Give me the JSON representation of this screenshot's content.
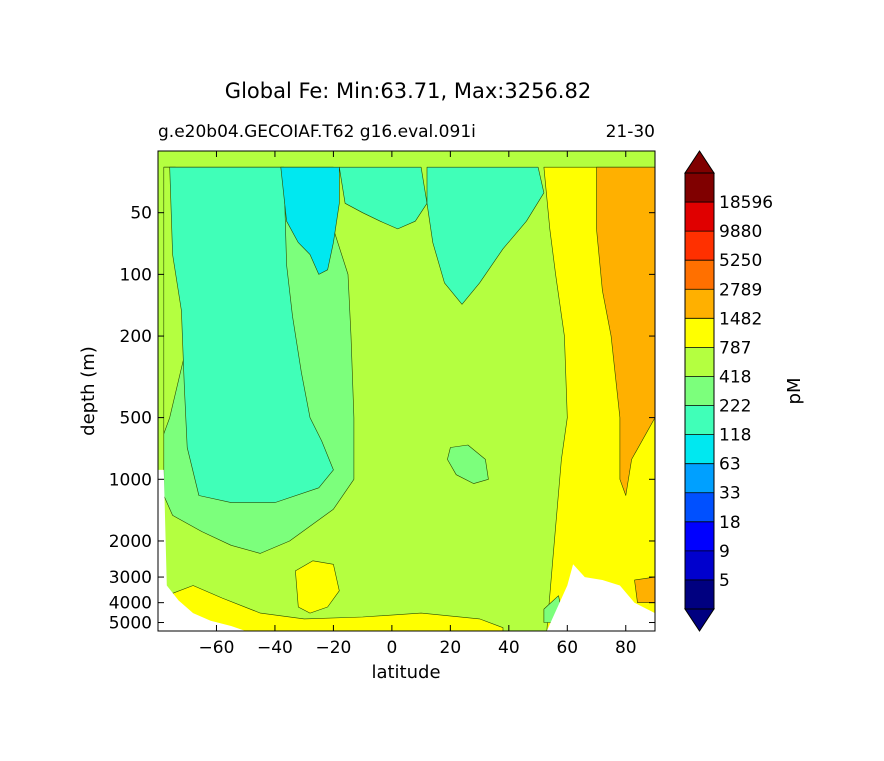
{
  "chart_data": {
    "type": "heatmap",
    "title": "Global Fe: Min:63.71, Max:3256.82",
    "subtitle_left": "g.e20b04.GECOIAF.T62 g16.eval.091i",
    "subtitle_right": "21-30",
    "xlabel": "latitude",
    "ylabel": "depth (m)",
    "colorbar_label": "pM",
    "xlim": [
      -80,
      90
    ],
    "x_ticks": [
      -60,
      -40,
      -20,
      0,
      20,
      40,
      60,
      80
    ],
    "x_tick_labels": [
      "−60",
      "−40",
      "−20",
      "0",
      "20",
      "40",
      "60",
      "80"
    ],
    "y_scale": "log",
    "ylim": [
      5500,
      25
    ],
    "y_ticks": [
      50,
      100,
      200,
      500,
      1000,
      2000,
      3000,
      4000,
      5000
    ],
    "y_tick_labels": [
      "50",
      "100",
      "200",
      "500",
      "1000",
      "2000",
      "3000",
      "4000",
      "5000"
    ],
    "colorbar_levels": [
      "5",
      "9",
      "18",
      "33",
      "63",
      "118",
      "222",
      "418",
      "787",
      "1482",
      "2789",
      "5250",
      "9880",
      "18596"
    ],
    "colorbar_colors": [
      "#000080",
      "#0000cd",
      "#0000ff",
      "#0050ff",
      "#00a0ff",
      "#00e8f0",
      "#40ffb8",
      "#7cff7c",
      "#b4ff40",
      "#ffff00",
      "#ffb000",
      "#ff7000",
      "#ff3000",
      "#e00000",
      "#800000"
    ],
    "colorbar_extend": "both",
    "regions": [
      {
        "fill": "#7cff7c",
        "desc": "southern intermediate/deep water",
        "poly": [
          [
            -78,
            30
          ],
          [
            -20,
            30
          ],
          [
            -20,
            60
          ],
          [
            -15,
            100
          ],
          [
            -14,
            200
          ],
          [
            -13,
            500
          ],
          [
            -13,
            1000
          ],
          [
            -20,
            1400
          ],
          [
            -35,
            2000
          ],
          [
            -45,
            2300
          ],
          [
            -55,
            2100
          ],
          [
            -65,
            1800
          ],
          [
            -75,
            1500
          ],
          [
            -78,
            1200
          ]
        ]
      },
      {
        "fill": "#b4ff40",
        "desc": "southern surface band",
        "poly": [
          [
            -78,
            30
          ],
          [
            -74,
            30
          ],
          [
            -73,
            60
          ],
          [
            -70,
            120
          ],
          [
            -71,
            250
          ],
          [
            -76,
            500
          ],
          [
            -78,
            600
          ]
        ]
      },
      {
        "fill": "#40ffb8",
        "desc": "southern mid-depth tongue",
        "poly": [
          [
            -76,
            30
          ],
          [
            -37,
            30
          ],
          [
            -36,
            90
          ],
          [
            -34,
            160
          ],
          [
            -31,
            300
          ],
          [
            -28,
            500
          ],
          [
            -24,
            650
          ],
          [
            -20,
            900
          ],
          [
            -25,
            1100
          ],
          [
            -40,
            1300
          ],
          [
            -55,
            1300
          ],
          [
            -66,
            1200
          ],
          [
            -70,
            700
          ],
          [
            -71,
            350
          ],
          [
            -72,
            150
          ],
          [
            -75,
            80
          ]
        ]
      },
      {
        "fill": "#00e8f0",
        "desc": "subtropical gyre low",
        "poly": [
          [
            -38,
            30
          ],
          [
            -18,
            30
          ],
          [
            -18,
            45
          ],
          [
            -20,
            70
          ],
          [
            -22,
            95
          ],
          [
            -25,
            100
          ],
          [
            -28,
            80
          ],
          [
            -32,
            70
          ],
          [
            -36,
            55
          ]
        ]
      },
      {
        "fill": "#40ffb8",
        "desc": "equatorial surface",
        "poly": [
          [
            -18,
            30
          ],
          [
            10,
            30
          ],
          [
            12,
            45
          ],
          [
            8,
            55
          ],
          [
            2,
            60
          ],
          [
            -4,
            55
          ],
          [
            -10,
            50
          ],
          [
            -16,
            45
          ]
        ]
      },
      {
        "fill": "#40ffb8",
        "desc": "tropical thermocline",
        "poly": [
          [
            12,
            30
          ],
          [
            50,
            30
          ],
          [
            52,
            40
          ],
          [
            46,
            55
          ],
          [
            38,
            75
          ],
          [
            30,
            110
          ],
          [
            24,
            140
          ],
          [
            18,
            110
          ],
          [
            14,
            70
          ],
          [
            12,
            45
          ]
        ]
      },
      {
        "fill": "#7cff7c",
        "desc": "northern intermediate patch",
        "poly": [
          [
            20,
            700
          ],
          [
            26,
            680
          ],
          [
            32,
            800
          ],
          [
            33,
            1000
          ],
          [
            28,
            1050
          ],
          [
            22,
            950
          ],
          [
            19,
            800
          ]
        ]
      },
      {
        "fill": "#ffff00",
        "desc": "deep abyssal south",
        "poly": [
          [
            -75,
            3600
          ],
          [
            -68,
            3300
          ],
          [
            -58,
            3800
          ],
          [
            -45,
            4500
          ],
          [
            -30,
            4800
          ],
          [
            -10,
            4700
          ],
          [
            10,
            4500
          ],
          [
            30,
            4800
          ],
          [
            38,
            5300
          ],
          [
            38,
            5500
          ],
          [
            -75,
            5500
          ]
        ]
      },
      {
        "fill": "#ffff00",
        "desc": "mid-ocean ridge high",
        "poly": [
          [
            -33,
            2800
          ],
          [
            -27,
            2500
          ],
          [
            -20,
            2600
          ],
          [
            -18,
            3500
          ],
          [
            -22,
            4200
          ],
          [
            -28,
            4500
          ],
          [
            -32,
            4200
          ]
        ]
      },
      {
        "fill": "#ffff00",
        "desc": "northern high",
        "poly": [
          [
            52,
            30
          ],
          [
            90,
            30
          ],
          [
            90,
            5500
          ],
          [
            53,
            5500
          ],
          [
            55,
            2500
          ],
          [
            58,
            800
          ],
          [
            60,
            500
          ],
          [
            59,
            200
          ],
          [
            56,
            100
          ],
          [
            54,
            60
          ]
        ]
      },
      {
        "fill": "#ffb000",
        "desc": "arctic maximum",
        "poly": [
          [
            70,
            30
          ],
          [
            90,
            30
          ],
          [
            90,
            500
          ],
          [
            82,
            800
          ],
          [
            80,
            1200
          ],
          [
            78,
            1000
          ],
          [
            78,
            500
          ],
          [
            75,
            200
          ],
          [
            72,
            120
          ],
          [
            70,
            60
          ]
        ]
      },
      {
        "fill": "#ffb000",
        "desc": "deep arctic patch",
        "poly": [
          [
            83,
            3100
          ],
          [
            90,
            3000
          ],
          [
            90,
            4000
          ],
          [
            84,
            4000
          ]
        ]
      },
      {
        "fill": "#7cff7c",
        "desc": "northern deep patch",
        "poly": [
          [
            52,
            4300
          ],
          [
            57,
            3700
          ],
          [
            58,
            4300
          ],
          [
            55,
            5000
          ],
          [
            52,
            5000
          ]
        ]
      }
    ],
    "land_mask": [
      {
        "desc": "antarctic seafloor",
        "poly": [
          [
            -80,
            900
          ],
          [
            -78,
            900
          ],
          [
            -77,
            3300
          ],
          [
            -73,
            3900
          ],
          [
            -68,
            4500
          ],
          [
            -62,
            4900
          ],
          [
            -55,
            5200
          ],
          [
            -50,
            5500
          ],
          [
            -80,
            5500
          ]
        ]
      },
      {
        "desc": "arctic seafloor",
        "poly": [
          [
            53,
            5500
          ],
          [
            60,
            3300
          ],
          [
            62,
            2600
          ],
          [
            66,
            3000
          ],
          [
            72,
            3100
          ],
          [
            78,
            3300
          ],
          [
            83,
            4000
          ],
          [
            90,
            4500
          ],
          [
            90,
            5500
          ]
        ]
      }
    ]
  }
}
